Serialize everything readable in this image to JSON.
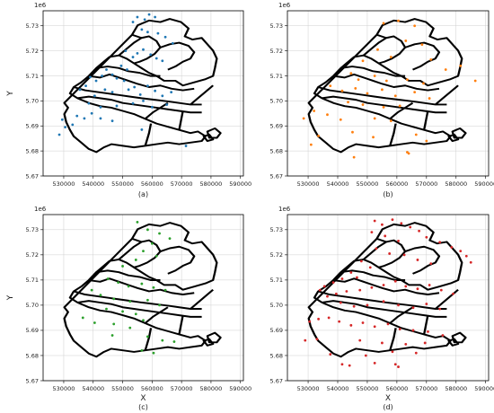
{
  "chart_data": [
    {
      "type": "scatter",
      "panel_label": "(a)",
      "xlabel": "",
      "ylabel": "Y",
      "offset_label": "1e6",
      "xlim": [
        523000,
        591000
      ],
      "ylim": [
        5.67,
        5.736
      ],
      "xticks": [
        530000,
        540000,
        550000,
        560000,
        570000,
        580000,
        590000
      ],
      "yticks": [
        5.67,
        5.68,
        5.69,
        5.7,
        5.71,
        5.72,
        5.73
      ],
      "xtick_labels": [
        "530000",
        "540000",
        "550000",
        "560000",
        "570000",
        "580000",
        "590000"
      ],
      "ytick_labels": [
        "5.67",
        "5.68",
        "5.69",
        "5.70",
        "5.71",
        "5.72",
        "5.73"
      ],
      "grid": true,
      "color": "#1f77b4",
      "points": [
        [
          553500,
          5.7315
        ],
        [
          555000,
          5.7335
        ],
        [
          557500,
          5.7325
        ],
        [
          559000,
          5.7345
        ],
        [
          561000,
          5.7335
        ],
        [
          556500,
          5.7285
        ],
        [
          558500,
          5.7275
        ],
        [
          562000,
          5.727
        ],
        [
          564500,
          5.7255
        ],
        [
          567000,
          5.723
        ],
        [
          551000,
          5.72
        ],
        [
          553500,
          5.7175
        ],
        [
          555000,
          5.719
        ],
        [
          557000,
          5.7205
        ],
        [
          559500,
          5.7185
        ],
        [
          561500,
          5.717
        ],
        [
          563500,
          5.716
        ],
        [
          549500,
          5.714
        ],
        [
          551500,
          5.7125
        ],
        [
          546500,
          5.7105
        ],
        [
          548000,
          5.709
        ],
        [
          550500,
          5.708
        ],
        [
          544500,
          5.7125
        ],
        [
          543000,
          5.71
        ],
        [
          541000,
          5.708
        ],
        [
          539000,
          5.7095
        ],
        [
          537500,
          5.706
        ],
        [
          535500,
          5.7045
        ],
        [
          544000,
          5.7045
        ],
        [
          546500,
          5.7035
        ],
        [
          552000,
          5.7045
        ],
        [
          554000,
          5.7055
        ],
        [
          556000,
          5.7025
        ],
        [
          558500,
          5.706
        ],
        [
          561000,
          5.704
        ],
        [
          563500,
          5.702
        ],
        [
          566500,
          5.7035
        ],
        [
          540500,
          5.702
        ],
        [
          538500,
          5.699
        ],
        [
          542500,
          5.6975
        ],
        [
          548000,
          5.698
        ],
        [
          553500,
          5.699
        ],
        [
          557000,
          5.7
        ],
        [
          560000,
          5.6975
        ],
        [
          565000,
          5.6985
        ],
        [
          534500,
          5.694
        ],
        [
          537000,
          5.693
        ],
        [
          539500,
          5.695
        ],
        [
          542500,
          5.693
        ],
        [
          546500,
          5.692
        ],
        [
          529500,
          5.6925
        ],
        [
          528500,
          5.6865
        ],
        [
          530500,
          5.6895
        ],
        [
          533000,
          5.6905
        ],
        [
          556500,
          5.6885
        ],
        [
          571500,
          5.682
        ]
      ]
    },
    {
      "type": "scatter",
      "panel_label": "(b)",
      "xlabel": "",
      "ylabel": "",
      "offset_label": "1e6",
      "xlim": [
        523000,
        591000
      ],
      "ylim": [
        5.67,
        5.736
      ],
      "xticks": [
        530000,
        540000,
        550000,
        560000,
        570000,
        580000,
        590000
      ],
      "yticks": [
        5.67,
        5.68,
        5.69,
        5.7,
        5.71,
        5.72,
        5.73
      ],
      "xtick_labels": [
        "530000",
        "540000",
        "550000",
        "560000",
        "570000",
        "580000",
        "590000"
      ],
      "ytick_labels": [
        "5.67",
        "5.68",
        "5.69",
        "5.70",
        "5.71",
        "5.72",
        "5.73"
      ],
      "grid": true,
      "color": "#ff7f0e",
      "points": [
        [
          555500,
          5.731
        ],
        [
          560500,
          5.732
        ],
        [
          566000,
          5.73
        ],
        [
          563000,
          5.724
        ],
        [
          568500,
          5.7225
        ],
        [
          553500,
          5.7205
        ],
        [
          548500,
          5.716
        ],
        [
          558000,
          5.7175
        ],
        [
          571500,
          5.7165
        ],
        [
          581500,
          5.714
        ],
        [
          576500,
          5.7125
        ],
        [
          544500,
          5.711
        ],
        [
          547000,
          5.7085
        ],
        [
          552500,
          5.71
        ],
        [
          556500,
          5.708
        ],
        [
          563500,
          5.7085
        ],
        [
          569000,
          5.707
        ],
        [
          586500,
          5.708
        ],
        [
          537500,
          5.706
        ],
        [
          541500,
          5.704
        ],
        [
          546000,
          5.705
        ],
        [
          550000,
          5.703
        ],
        [
          555000,
          5.7045
        ],
        [
          559500,
          5.702
        ],
        [
          566000,
          5.7035
        ],
        [
          571000,
          5.701
        ],
        [
          543500,
          5.6995
        ],
        [
          548500,
          5.6985
        ],
        [
          555500,
          5.6975
        ],
        [
          561000,
          5.698
        ],
        [
          532000,
          5.696
        ],
        [
          528500,
          5.693
        ],
        [
          536500,
          5.6945
        ],
        [
          541000,
          5.6925
        ],
        [
          552500,
          5.693
        ],
        [
          558000,
          5.692
        ],
        [
          545000,
          5.6875
        ],
        [
          533500,
          5.686
        ],
        [
          552000,
          5.6855
        ],
        [
          566500,
          5.6865
        ],
        [
          564000,
          5.679
        ],
        [
          563500,
          5.6795
        ],
        [
          531000,
          5.6825
        ],
        [
          545500,
          5.6775
        ],
        [
          570000,
          5.684
        ]
      ]
    },
    {
      "type": "scatter",
      "panel_label": "(c)",
      "xlabel": "X",
      "ylabel": "Y",
      "offset_label": "1e6",
      "xlim": [
        523000,
        591000
      ],
      "ylim": [
        5.67,
        5.736
      ],
      "xticks": [
        530000,
        540000,
        550000,
        560000,
        570000,
        580000,
        590000
      ],
      "yticks": [
        5.67,
        5.68,
        5.69,
        5.7,
        5.71,
        5.72,
        5.73
      ],
      "xtick_labels": [
        "530000",
        "540000",
        "550000",
        "560000",
        "570000",
        "580000",
        "590000"
      ],
      "ytick_labels": [
        "5.67",
        "5.68",
        "5.69",
        "5.70",
        "5.71",
        "5.72",
        "5.73"
      ],
      "grid": true,
      "color": "#2ca02c",
      "points": [
        [
          555000,
          5.733
        ],
        [
          558500,
          5.73
        ],
        [
          562500,
          5.7285
        ],
        [
          566000,
          5.7265
        ],
        [
          560000,
          5.7245
        ],
        [
          557000,
          5.7215
        ],
        [
          561500,
          5.7195
        ],
        [
          554500,
          5.718
        ],
        [
          550000,
          5.7155
        ],
        [
          545000,
          5.7105
        ],
        [
          548500,
          5.709
        ],
        [
          552000,
          5.7075
        ],
        [
          556500,
          5.7085
        ],
        [
          560500,
          5.707
        ],
        [
          564500,
          5.706
        ],
        [
          539500,
          5.706
        ],
        [
          542500,
          5.704
        ],
        [
          547000,
          5.7025
        ],
        [
          552500,
          5.7015
        ],
        [
          558500,
          5.702
        ],
        [
          562500,
          5.7
        ],
        [
          544500,
          5.6985
        ],
        [
          550000,
          5.6975
        ],
        [
          554500,
          5.6965
        ],
        [
          557000,
          5.694
        ],
        [
          536500,
          5.695
        ],
        [
          540500,
          5.693
        ],
        [
          547000,
          5.6925
        ],
        [
          552500,
          5.691
        ],
        [
          546500,
          5.688
        ],
        [
          558500,
          5.6875
        ],
        [
          563500,
          5.686
        ],
        [
          567500,
          5.6855
        ],
        [
          556500,
          5.682
        ],
        [
          560500,
          5.681
        ]
      ]
    },
    {
      "type": "scatter",
      "panel_label": "(d)",
      "xlabel": "X",
      "ylabel": "",
      "offset_label": "1e6",
      "xlim": [
        523000,
        591000
      ],
      "ylim": [
        5.67,
        5.736
      ],
      "xticks": [
        530000,
        540000,
        550000,
        560000,
        570000,
        580000,
        590000
      ],
      "yticks": [
        5.67,
        5.68,
        5.69,
        5.7,
        5.71,
        5.72,
        5.73
      ],
      "xtick_labels": [
        "530000",
        "540000",
        "550000",
        "560000",
        "570000",
        "580000",
        "590000"
      ],
      "ytick_labels": [
        "5.67",
        "5.68",
        "5.69",
        "5.70",
        "5.71",
        "5.72",
        "5.73"
      ],
      "grid": true,
      "color": "#d62728",
      "points": [
        [
          552500,
          5.7335
        ],
        [
          555000,
          5.732
        ],
        [
          558500,
          5.734
        ],
        [
          561500,
          5.7325
        ],
        [
          564500,
          5.731
        ],
        [
          567500,
          5.7295
        ],
        [
          570000,
          5.727
        ],
        [
          574500,
          5.725
        ],
        [
          578500,
          5.723
        ],
        [
          581500,
          5.7215
        ],
        [
          583500,
          5.7195
        ],
        [
          585000,
          5.717
        ],
        [
          551500,
          5.729
        ],
        [
          556000,
          5.7275
        ],
        [
          560500,
          5.7255
        ],
        [
          553000,
          5.7225
        ],
        [
          557500,
          5.7205
        ],
        [
          562500,
          5.72
        ],
        [
          567000,
          5.718
        ],
        [
          571500,
          5.7165
        ],
        [
          548000,
          5.7175
        ],
        [
          551000,
          5.715
        ],
        [
          544500,
          5.713
        ],
        [
          546500,
          5.711
        ],
        [
          541500,
          5.7105
        ],
        [
          538500,
          5.709
        ],
        [
          535500,
          5.7075
        ],
        [
          534000,
          5.706
        ],
        [
          536500,
          5.7035
        ],
        [
          539500,
          5.7045
        ],
        [
          543000,
          5.7055
        ],
        [
          547500,
          5.706
        ],
        [
          551500,
          5.707
        ],
        [
          555500,
          5.708
        ],
        [
          559500,
          5.7095
        ],
        [
          563000,
          5.7075
        ],
        [
          567000,
          5.7065
        ],
        [
          571000,
          5.708
        ],
        [
          575000,
          5.706
        ],
        [
          579000,
          5.7045
        ],
        [
          541000,
          5.701
        ],
        [
          545500,
          5.6995
        ],
        [
          550000,
          5.7
        ],
        [
          555500,
          5.7015
        ],
        [
          560500,
          5.7
        ],
        [
          565500,
          5.699
        ],
        [
          570000,
          5.7005
        ],
        [
          574500,
          5.6985
        ],
        [
          530500,
          5.6935
        ],
        [
          533500,
          5.6945
        ],
        [
          537000,
          5.695
        ],
        [
          540500,
          5.6935
        ],
        [
          544500,
          5.692
        ],
        [
          548500,
          5.693
        ],
        [
          552500,
          5.6915
        ],
        [
          557000,
          5.6925
        ],
        [
          561000,
          5.6905
        ],
        [
          565500,
          5.69
        ],
        [
          570500,
          5.6895
        ],
        [
          575500,
          5.688
        ],
        [
          529000,
          5.686
        ],
        [
          533000,
          5.6865
        ],
        [
          547500,
          5.686
        ],
        [
          555000,
          5.685
        ],
        [
          563000,
          5.6845
        ],
        [
          569500,
          5.685
        ],
        [
          537500,
          5.6805
        ],
        [
          549500,
          5.68
        ],
        [
          558500,
          5.6815
        ],
        [
          566500,
          5.681
        ],
        [
          541500,
          5.6765
        ],
        [
          544000,
          5.676
        ],
        [
          552500,
          5.677
        ],
        [
          559500,
          5.6765
        ],
        [
          560500,
          5.6755
        ]
      ]
    }
  ]
}
